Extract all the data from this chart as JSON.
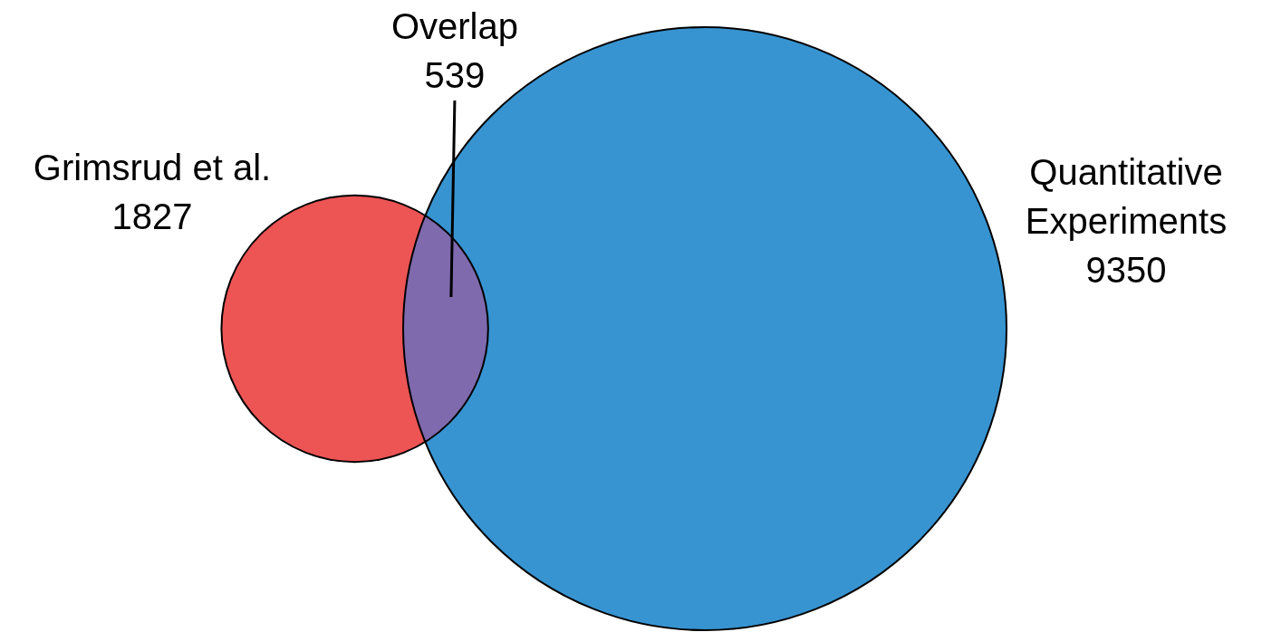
{
  "chart_data": {
    "type": "other",
    "categories": [
      "Grimsrud et al.",
      "Quantitative Experiments",
      "Overlap"
    ],
    "values": [
      1827,
      9350,
      539
    ],
    "colors": [
      "#ed5454",
      "#3794d1",
      "#7f6aae"
    ],
    "data_labels": true
  }
}
